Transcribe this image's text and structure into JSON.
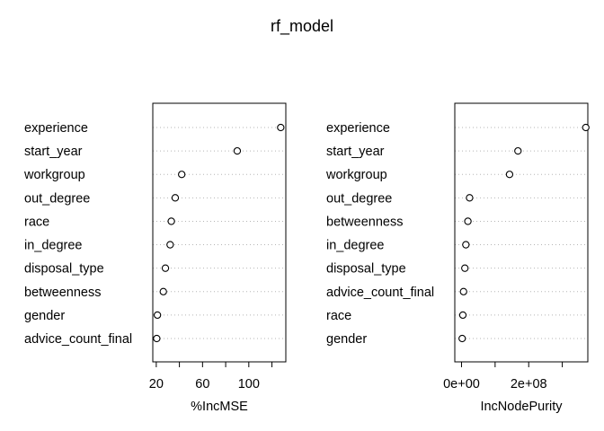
{
  "title": "rf_model",
  "chart_data": [
    {
      "type": "scatter",
      "xlabel": "%IncMSE",
      "xlim": [
        17,
        132
      ],
      "xticks": [
        20,
        60,
        100
      ],
      "xtick_minor": [
        40,
        80,
        120
      ],
      "categories": [
        "experience",
        "start_year",
        "workgroup",
        "out_degree",
        "race",
        "in_degree",
        "disposal_type",
        "betweenness",
        "gender",
        "advice_count_final"
      ],
      "values": [
        127.6,
        90.0,
        42.0,
        36.4,
        33.0,
        32.0,
        27.9,
        26.1,
        21.0,
        20.4
      ],
      "grid": "dotted horizontal"
    },
    {
      "type": "scatter",
      "xlabel": "IncNodePurity",
      "xlim": [
        -20000000,
        376000000
      ],
      "xticks": [
        0,
        200000000
      ],
      "xtick_labels": [
        "0e+00",
        "2e+08"
      ],
      "xtick_minor": [
        100000000,
        300000000
      ],
      "categories": [
        "experience",
        "start_year",
        "workgroup",
        "out_degree",
        "betweenness",
        "in_degree",
        "disposal_type",
        "advice_count_final",
        "race",
        "gender"
      ],
      "values": [
        370000000,
        168000000,
        143000000,
        24000000,
        19000000,
        13000000,
        10000000,
        6000000,
        4000000,
        2000000
      ],
      "grid": "dotted horizontal"
    }
  ]
}
